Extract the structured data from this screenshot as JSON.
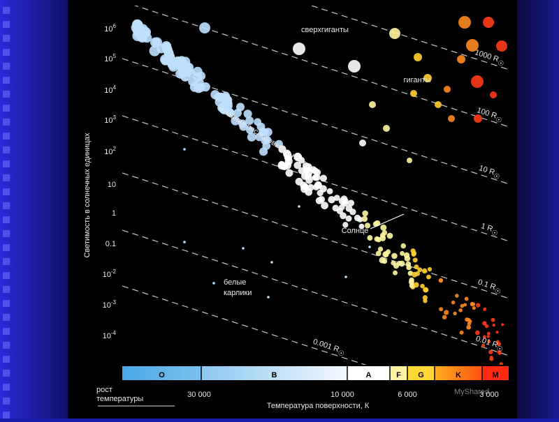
{
  "y_axis_title": "Светимость в солнечных единицах",
  "y_tick_labels": [
    {
      "text": "10",
      "sup": "6"
    },
    {
      "text": "10",
      "sup": "5"
    },
    {
      "text": "10",
      "sup": "4"
    },
    {
      "text": "10",
      "sup": "3"
    },
    {
      "text": "10",
      "sup": "2"
    },
    {
      "text": "10"
    },
    {
      "text": "1"
    },
    {
      "text": "0.1"
    },
    {
      "text": "10",
      "sup": "-2"
    },
    {
      "text": "10",
      "sup": "-3"
    },
    {
      "text": "10",
      "sup": "-4"
    }
  ],
  "spectral_classes": [
    "O",
    "B",
    "A",
    "F",
    "G",
    "K",
    "M"
  ],
  "temperature_note": [
    "рост",
    "температуры"
  ],
  "x_tick_labels": [
    "30 000",
    "10 000",
    "6 000",
    "3 000"
  ],
  "x_axis_title": "Температура поверхности, К",
  "radius_lines": [
    {
      "text": "1000 R",
      "sub": "☉"
    },
    {
      "text": "100 R",
      "sub": "☉"
    },
    {
      "text": "10 R",
      "sub": "☉"
    },
    {
      "text": "1 R",
      "sub": "☉"
    },
    {
      "text": "0.1 R",
      "sub": "☉"
    },
    {
      "text": "0.01 R",
      "sub": "☉"
    },
    {
      "text": "0.001 R",
      "sub": "☉"
    }
  ],
  "regions": {
    "supergiants": "сверхгиганты",
    "giants": "гиганты",
    "main_sequence": "главная последовательность",
    "sun": "Солнце",
    "white_dwarfs": [
      "белые",
      "карлики"
    ]
  },
  "watermark": "MyShared"
}
